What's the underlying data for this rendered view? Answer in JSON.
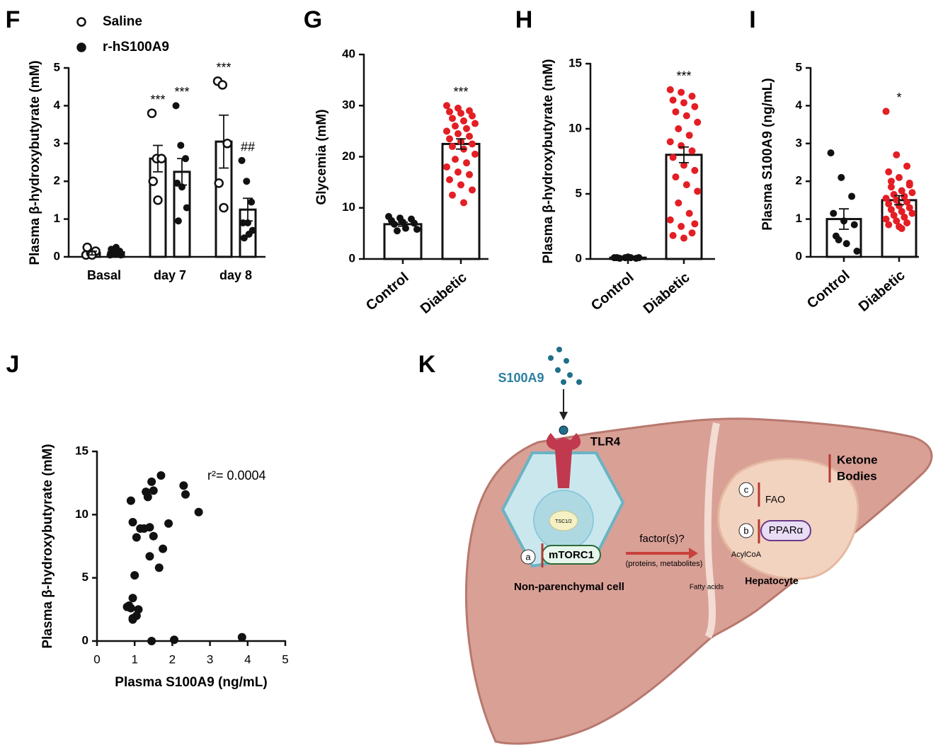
{
  "chart_data": [
    {
      "panel": "F",
      "type": "bar",
      "ylabel": "Plasma β-hydroxybutyrate (mM)",
      "categories": [
        "Basal",
        "day 7",
        "day 8"
      ],
      "ylim": [
        0,
        5
      ],
      "yticks": [
        0,
        1,
        2,
        3,
        4,
        5
      ],
      "series": [
        {
          "name": "Saline",
          "marker": "open",
          "color": "#111111",
          "values": [
            0.1,
            2.6,
            3.05
          ],
          "errors": [
            0.05,
            0.35,
            0.7
          ],
          "points": [
            [
              0.05,
              0.1,
              0.15,
              0.25,
              0.05
            ],
            [
              3.8,
              2.6,
              2.6,
              2.0,
              1.5
            ],
            [
              4.65,
              4.55,
              3.0,
              1.95,
              1.3
            ]
          ],
          "annotations": [
            null,
            "***",
            "***"
          ]
        },
        {
          "name": "r-hS100A9",
          "marker": "filled",
          "color": "#111111",
          "values": [
            0.12,
            2.25,
            1.25
          ],
          "errors": [
            0.04,
            0.35,
            0.3
          ],
          "points": [
            [
              0.05,
              0.1,
              0.15,
              0.2,
              0.25,
              0.05,
              0.1
            ],
            [
              4.0,
              2.95,
              2.6,
              1.95,
              1.85,
              1.3,
              0.95
            ],
            [
              2.55,
              2.0,
              1.45,
              0.9,
              0.9,
              0.7,
              0.5,
              0.6
            ]
          ],
          "annotations": [
            null,
            "***",
            "##"
          ]
        }
      ]
    },
    {
      "panel": "G",
      "type": "bar",
      "ylabel": "Glycemia (mM)",
      "categories": [
        "Control",
        "Diabetic"
      ],
      "ylim": [
        0,
        40
      ],
      "yticks": [
        0,
        10,
        20,
        30,
        40
      ],
      "series": [
        {
          "values": [
            6.8,
            22.5
          ],
          "errors": [
            0.4,
            1.0
          ],
          "point_colors": [
            "#111111",
            "#e31e24"
          ],
          "points": [
            [
              8.3,
              8.0,
              7.8,
              7.5,
              7.2,
              7.0,
              6.8,
              6.0,
              5.8,
              5.5
            ],
            [
              30,
              29.5,
              29,
              28.8,
              28.5,
              28,
              27.5,
              27,
              26.5,
              26,
              25.5,
              25,
              24.5,
              24,
              23.5,
              23,
              22.5,
              22,
              21.5,
              20.5,
              19.5,
              18.8,
              18,
              17,
              16.5,
              15.5,
              14.5,
              13.5,
              12.5,
              11
            ]
          ],
          "annotations": [
            null,
            "***"
          ]
        }
      ]
    },
    {
      "panel": "H",
      "type": "bar",
      "ylabel": "Plasma β-hydroxybutyrate (mM)",
      "categories": [
        "Control",
        "Diabetic"
      ],
      "ylim": [
        0,
        15
      ],
      "yticks": [
        0,
        5,
        10,
        15
      ],
      "series": [
        {
          "values": [
            0.1,
            8.0
          ],
          "errors": [
            0.02,
            0.6
          ],
          "point_colors": [
            "#111111",
            "#e31e24"
          ],
          "points": [
            [
              0.1,
              0.1,
              0.05,
              0.1,
              0.15,
              0.1,
              0.05,
              0.1
            ],
            [
              13,
              12.8,
              12.5,
              12.2,
              12,
              11.7,
              11.3,
              11,
              10.5,
              10,
              9.5,
              9,
              8.7,
              8.3,
              7.8,
              7.2,
              6.8,
              6.3,
              5.7,
              5.2,
              4.3,
              3.5,
              3,
              2.5,
              2,
              1.8,
              1.6,
              2.7
            ]
          ],
          "annotations": [
            null,
            "***"
          ]
        }
      ]
    },
    {
      "panel": "I",
      "type": "bar",
      "ylabel": "Plasma S100A9 (ng/mL)",
      "categories": [
        "Control",
        "Diabetic"
      ],
      "ylim": [
        0,
        5
      ],
      "yticks": [
        0,
        1,
        2,
        3,
        4,
        5
      ],
      "series": [
        {
          "values": [
            1.0,
            1.5
          ],
          "errors": [
            0.27,
            0.12
          ],
          "point_colors": [
            "#111111",
            "#e31e24"
          ],
          "points": [
            [
              2.75,
              2.1,
              1.6,
              1.15,
              0.95,
              0.85,
              0.55,
              0.35,
              0.15,
              0.45
            ],
            [
              3.85,
              2.7,
              2.4,
              2.25,
              2.1,
              1.95,
              1.85,
              1.75,
              1.7,
              1.65,
              1.6,
              1.55,
              1.5,
              1.45,
              1.4,
              1.35,
              1.3,
              1.25,
              1.2,
              1.15,
              1.1,
              1.05,
              1.0,
              0.95,
              0.9,
              0.85,
              0.8,
              1.9,
              2.0,
              0.75
            ]
          ],
          "annotations": [
            null,
            "*"
          ]
        }
      ]
    },
    {
      "panel": "J",
      "type": "scatter",
      "xlabel": "Plasma S100A9 (ng/mL)",
      "ylabel": "Plasma β-hydroxybutyrate (mM)",
      "annotation": "r²= 0.0004",
      "color": "#111111",
      "xlim": [
        0,
        5
      ],
      "xticks": [
        0,
        1,
        2,
        3,
        4,
        5
      ],
      "ylim": [
        0,
        15
      ],
      "yticks": [
        0,
        5,
        10,
        15
      ],
      "x": [
        0.9,
        0.95,
        1.3,
        1.35,
        1.45,
        1.5,
        1.7,
        2.3,
        2.35,
        2.7,
        1.05,
        1.25,
        1.4,
        1.15,
        1.9,
        1.5,
        1.75,
        1.4,
        1.65,
        1.0,
        0.95,
        0.85,
        0.9,
        0.8,
        1.05,
        0.95,
        0.95,
        1.45,
        2.05,
        3.85,
        1.1
      ],
      "values": [
        11.1,
        9.4,
        11.8,
        11.4,
        12.6,
        11.9,
        13.1,
        12.3,
        11.6,
        10.2,
        8.2,
        8.9,
        9.0,
        8.9,
        9.3,
        8.3,
        7.3,
        6.7,
        5.8,
        5.2,
        3.4,
        2.8,
        2.6,
        2.7,
        2.0,
        1.8,
        1.7,
        0.0,
        0.1,
        0.3,
        2.5
      ]
    }
  ],
  "diagram": {
    "panel": "K",
    "labels": {
      "ligand": "S100A9",
      "receptor": "TLR4",
      "tsc": "TSC1/2",
      "mtorc": "mTORC1",
      "a": "a",
      "cell": "Non-parenchymal cell",
      "factor": "factor(s)?",
      "factor_note": "(proteins, metabolites)",
      "fatty": "Fatty acids",
      "acyl": "AcylCoA",
      "hepatocyte": "Hepatocyte",
      "ppar": "PPARα",
      "b": "b",
      "fao": "FAO",
      "c": "c",
      "ketone1": "Ketone",
      "ketone2": "Bodies"
    }
  }
}
